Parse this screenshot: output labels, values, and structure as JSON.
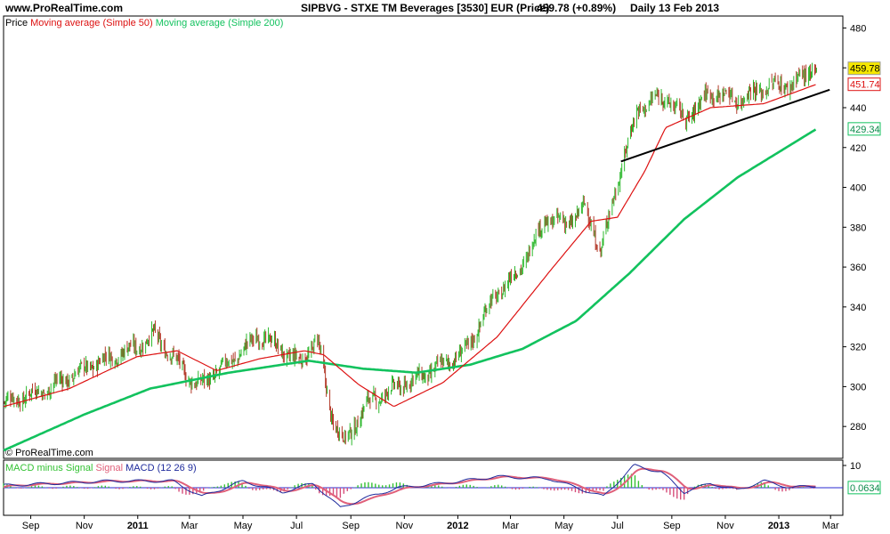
{
  "header": {
    "site": "www.ProRealTime.com",
    "instrument": "SIPBVG - STXE TM Beverages [3530] EUR (Price)",
    "last_change": "459.78 (+0.89%)",
    "period": "Daily 13 Feb 2013"
  },
  "legend": {
    "price": "Price",
    "ma50": "Moving average (Simple 50)",
    "ma200": "Moving average (Simple 200)"
  },
  "macd_legend": {
    "hist": "MACD minus Signal",
    "signal": "Signal",
    "macd": "MACD",
    "params": "(12 26 9)"
  },
  "credit": "© ProRealTime.com",
  "colors": {
    "up": "#2db82d",
    "down": "#b33a2a",
    "ma50": "#dd1111",
    "ma200": "#12c25e",
    "trend": "#000000",
    "macd": "#1e2a9c",
    "signal": "#e0607a",
    "hist_pos": "#34c234",
    "hist_neg": "#d64e7a",
    "last_badge": "#f6e800",
    "zero_line": "#2a2ad0"
  },
  "chart_data": [
    {
      "type": "candlestick",
      "title": "SIPBVG - STXE TM Beverages [3530] EUR (Price)",
      "x_axis_ticks": [
        "Sep",
        "Nov",
        "2011",
        "Mar",
        "May",
        "Jul",
        "Sep",
        "Nov",
        "2012",
        "Mar",
        "May",
        "Jul",
        "Sep",
        "Nov",
        "2013",
        "Mar"
      ],
      "x_range": [
        "2010-08-01",
        "2013-03-15"
      ],
      "y_range": [
        264,
        486
      ],
      "y_ticks": [
        280,
        300,
        320,
        340,
        360,
        380,
        400,
        420,
        440,
        460,
        480
      ],
      "grid": false,
      "price_key_points": [
        {
          "date": "2010-08-01",
          "close": 292
        },
        {
          "date": "2010-09-15",
          "close": 298
        },
        {
          "date": "2010-11-15",
          "close": 312
        },
        {
          "date": "2010-12-31",
          "close": 320
        },
        {
          "date": "2011-01-20",
          "close": 326
        },
        {
          "date": "2011-03-10",
          "close": 300
        },
        {
          "date": "2011-04-15",
          "close": 312
        },
        {
          "date": "2011-05-20",
          "close": 326
        },
        {
          "date": "2011-07-05",
          "close": 312
        },
        {
          "date": "2011-07-25",
          "close": 324
        },
        {
          "date": "2011-08-10",
          "close": 285
        },
        {
          "date": "2011-08-25",
          "close": 272
        },
        {
          "date": "2011-09-20",
          "close": 292
        },
        {
          "date": "2011-10-25",
          "close": 300
        },
        {
          "date": "2011-11-25",
          "close": 306
        },
        {
          "date": "2012-01-10",
          "close": 318
        },
        {
          "date": "2012-02-10",
          "close": 344
        },
        {
          "date": "2012-03-10",
          "close": 358
        },
        {
          "date": "2012-04-10",
          "close": 384
        },
        {
          "date": "2012-05-05",
          "close": 382
        },
        {
          "date": "2012-05-25",
          "close": 390
        },
        {
          "date": "2012-06-12",
          "close": 368
        },
        {
          "date": "2012-07-05",
          "close": 410
        },
        {
          "date": "2012-07-25",
          "close": 440
        },
        {
          "date": "2012-08-25",
          "close": 446
        },
        {
          "date": "2012-09-15",
          "close": 434
        },
        {
          "date": "2012-10-15",
          "close": 448
        },
        {
          "date": "2012-11-15",
          "close": 444
        },
        {
          "date": "2012-12-15",
          "close": 450
        },
        {
          "date": "2013-01-15",
          "close": 452
        },
        {
          "date": "2013-02-13",
          "close": 459.78
        }
      ],
      "ma50_points": [
        {
          "date": "2010-08-01",
          "value": 290
        },
        {
          "date": "2010-10-15",
          "value": 299
        },
        {
          "date": "2010-12-31",
          "value": 315
        },
        {
          "date": "2011-02-15",
          "value": 318
        },
        {
          "date": "2011-04-01",
          "value": 308
        },
        {
          "date": "2011-05-20",
          "value": 314
        },
        {
          "date": "2011-07-10",
          "value": 318
        },
        {
          "date": "2011-08-01",
          "value": 316
        },
        {
          "date": "2011-09-10",
          "value": 301
        },
        {
          "date": "2011-10-20",
          "value": 290
        },
        {
          "date": "2011-12-15",
          "value": 302
        },
        {
          "date": "2012-02-15",
          "value": 325
        },
        {
          "date": "2012-04-15",
          "value": 358
        },
        {
          "date": "2012-06-01",
          "value": 383
        },
        {
          "date": "2012-07-01",
          "value": 385
        },
        {
          "date": "2012-08-01",
          "value": 408
        },
        {
          "date": "2012-08-25",
          "value": 430
        },
        {
          "date": "2012-10-15",
          "value": 440
        },
        {
          "date": "2012-12-15",
          "value": 442
        },
        {
          "date": "2013-02-13",
          "value": 451.74
        }
      ],
      "ma200_points": [
        {
          "date": "2010-08-01",
          "value": 268
        },
        {
          "date": "2010-11-01",
          "value": 286
        },
        {
          "date": "2011-01-15",
          "value": 299
        },
        {
          "date": "2011-04-15",
          "value": 307
        },
        {
          "date": "2011-07-15",
          "value": 313
        },
        {
          "date": "2011-09-15",
          "value": 309
        },
        {
          "date": "2011-11-15",
          "value": 307
        },
        {
          "date": "2012-01-15",
          "value": 311
        },
        {
          "date": "2012-03-15",
          "value": 319
        },
        {
          "date": "2012-05-15",
          "value": 333
        },
        {
          "date": "2012-07-15",
          "value": 357
        },
        {
          "date": "2012-09-15",
          "value": 384
        },
        {
          "date": "2012-11-15",
          "value": 405
        },
        {
          "date": "2013-02-13",
          "value": 429.34
        }
      ],
      "trendline": [
        {
          "date": "2012-07-05",
          "value": 413
        },
        {
          "date": "2013-02-28",
          "value": 449
        }
      ],
      "last_price": "459.78",
      "ma50_last": "451.74",
      "ma200_last": "429.34"
    },
    {
      "type": "macd",
      "title": "MACD (12 26 9)",
      "y_range": [
        -12,
        12
      ],
      "y_ticks": [
        10
      ],
      "zero_line": true,
      "macd_key_points": [
        {
          "date": "2010-08-01",
          "value": 1
        },
        {
          "date": "2010-10-01",
          "value": 2
        },
        {
          "date": "2010-12-01",
          "value": 3
        },
        {
          "date": "2011-02-10",
          "value": 3
        },
        {
          "date": "2011-03-15",
          "value": -4
        },
        {
          "date": "2011-05-01",
          "value": 3
        },
        {
          "date": "2011-06-15",
          "value": -2
        },
        {
          "date": "2011-07-20",
          "value": 2
        },
        {
          "date": "2011-08-20",
          "value": -9
        },
        {
          "date": "2011-09-15",
          "value": -5
        },
        {
          "date": "2011-10-25",
          "value": 0
        },
        {
          "date": "2011-12-15",
          "value": 2
        },
        {
          "date": "2012-02-15",
          "value": 5
        },
        {
          "date": "2012-04-15",
          "value": 4
        },
        {
          "date": "2012-06-15",
          "value": -4
        },
        {
          "date": "2012-07-20",
          "value": 10
        },
        {
          "date": "2012-08-20",
          "value": 7
        },
        {
          "date": "2012-09-15",
          "value": -2
        },
        {
          "date": "2012-10-15",
          "value": 2
        },
        {
          "date": "2012-11-15",
          "value": -1
        },
        {
          "date": "2012-12-15",
          "value": 3
        },
        {
          "date": "2013-01-15",
          "value": 0
        },
        {
          "date": "2013-02-13",
          "value": 1
        }
      ],
      "last_value": "0.0634"
    }
  ]
}
